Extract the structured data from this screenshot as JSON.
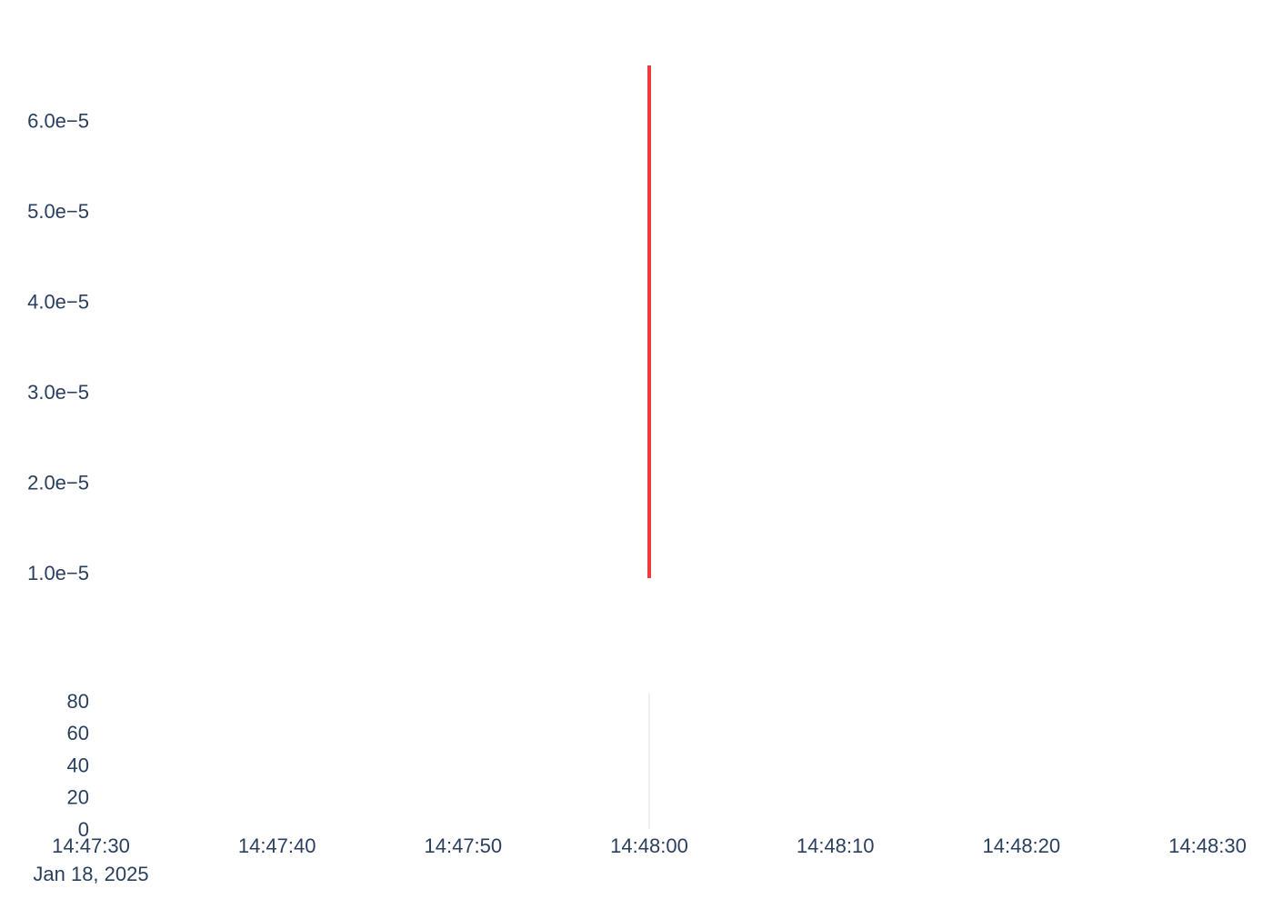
{
  "chart_data": [
    {
      "type": "line",
      "title": "",
      "xlabel": "",
      "ylabel": "",
      "grid": false,
      "legend": "none",
      "series": [
        {
          "color": "#ef3b3b",
          "points": [
            {
              "x": "14:48:00",
              "y_low": 9.4e-06,
              "y_high": 6.61e-05
            }
          ]
        }
      ],
      "xlim": [
        "14:47:30",
        "14:48:30"
      ],
      "ylim": [
        9.4e-06,
        6.61e-05
      ],
      "x_ticks": [
        "14:47:30",
        "14:47:40",
        "14:47:50",
        "14:48:00",
        "14:48:10",
        "14:48:20",
        "14:48:30"
      ],
      "x_date_label": "Jan 18, 2025",
      "y_ticks": [
        "1.0e−5",
        "2.0e−5",
        "3.0e−5",
        "4.0e−5",
        "5.0e−5",
        "6.0e−5"
      ],
      "y_tick_values": [
        1e-05,
        2e-05,
        3e-05,
        4e-05,
        5e-05,
        6e-05
      ]
    },
    {
      "type": "bar",
      "title": "",
      "xlabel": "",
      "ylabel": "",
      "grid": false,
      "categories": [
        "14:48:00"
      ],
      "values": [
        0
      ],
      "ylim": [
        0,
        85
      ],
      "y_ticks": [
        "0",
        "20",
        "40",
        "60",
        "80"
      ],
      "y_tick_values": [
        0,
        20,
        40,
        60,
        80
      ],
      "zero_line_color": "#ebebeb"
    }
  ]
}
